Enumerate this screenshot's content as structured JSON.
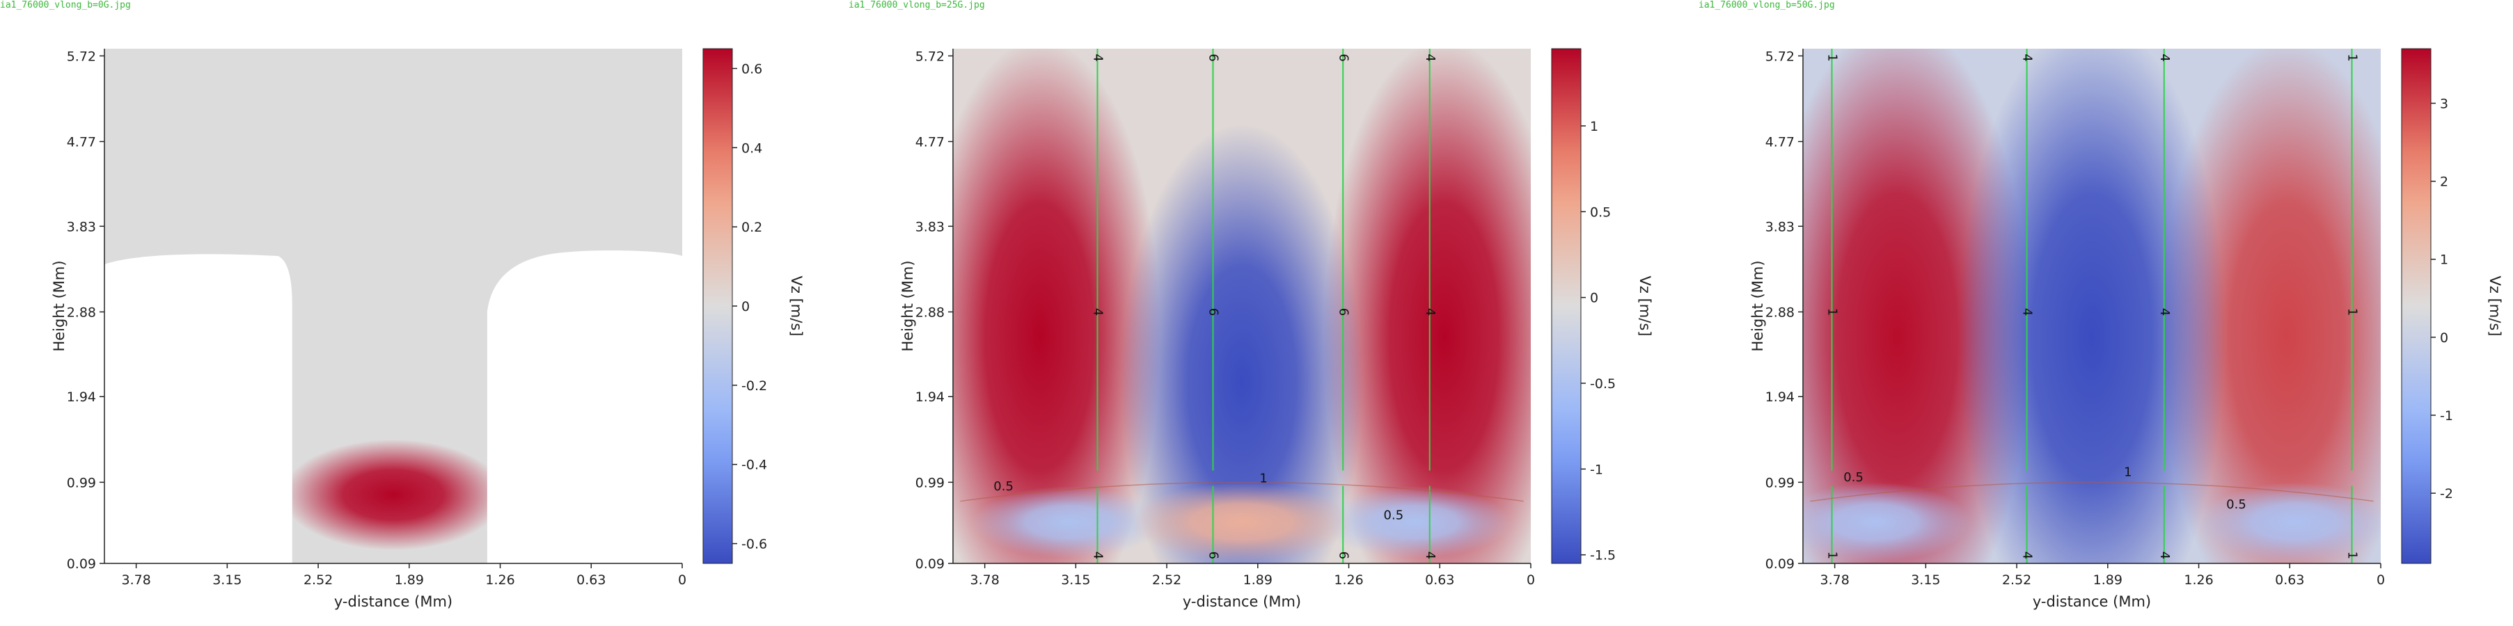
{
  "chart_data": [
    {
      "type": "heatmap",
      "file_label": "ia1_76000_vlong_b=0G.jpg",
      "xlabel": "y-distance (Mm)",
      "ylabel": "Height (Mm)",
      "colorbar_label": "Vz [m/s]",
      "xticks": [
        "3.78",
        "3.15",
        "2.52",
        "1.89",
        "1.26",
        "0.63",
        "0"
      ],
      "yticks": [
        "0.09",
        "0.99",
        "1.94",
        "2.88",
        "3.83",
        "4.77",
        "5.72"
      ],
      "xlim": [
        4.0,
        0.0
      ],
      "ylim": [
        0.09,
        5.8
      ],
      "colorbar_ticks": [
        "0.6",
        "0.4",
        "0.2",
        "0",
        "-0.2",
        "-0.4",
        "-0.6"
      ],
      "colorbar_range": [
        -0.65,
        0.65
      ],
      "masked_region": true,
      "blobs": [
        {
          "x": 2.0,
          "y": 0.85,
          "sx": 0.35,
          "sy": 0.28,
          "value": 0.65
        }
      ],
      "contours": [],
      "contour_labels": []
    },
    {
      "type": "heatmap",
      "file_label": "ia1_76000_vlong_b=25G.jpg",
      "xlabel": "y-distance (Mm)",
      "ylabel": "Height (Mm)",
      "colorbar_label": "Vz [m/s]",
      "xticks": [
        "3.78",
        "3.15",
        "2.52",
        "1.89",
        "1.26",
        "0.63",
        "0"
      ],
      "yticks": [
        "0.09",
        "0.99",
        "1.94",
        "2.88",
        "3.83",
        "4.77",
        "5.72"
      ],
      "xlim": [
        4.0,
        0.0
      ],
      "ylim": [
        0.09,
        5.8
      ],
      "colorbar_ticks": [
        "1",
        "0.5",
        "0",
        "-0.5",
        "-1",
        "-1.5"
      ],
      "colorbar_range": [
        -1.55,
        1.45
      ],
      "masked_region": false,
      "blobs": [
        {
          "x": 3.4,
          "y": 2.6,
          "sx": 0.38,
          "sy": 1.5,
          "value": 1.45
        },
        {
          "x": 0.6,
          "y": 2.6,
          "sx": 0.38,
          "sy": 1.5,
          "value": 1.45
        },
        {
          "x": 2.0,
          "y": 2.1,
          "sx": 0.38,
          "sy": 1.3,
          "value": -1.55
        },
        {
          "x": 3.2,
          "y": 0.55,
          "sx": 0.3,
          "sy": 0.18,
          "value": -0.5
        },
        {
          "x": 0.8,
          "y": 0.55,
          "sx": 0.3,
          "sy": 0.18,
          "value": -0.5
        },
        {
          "x": 2.0,
          "y": 0.55,
          "sx": 0.35,
          "sy": 0.2,
          "value": 0.45
        }
      ],
      "contours": [
        {
          "label": "6",
          "x": 2.2
        },
        {
          "label": "6",
          "x": 1.3
        },
        {
          "label": "4",
          "x": 3.0
        },
        {
          "label": "4",
          "x": 0.7
        }
      ],
      "contour_labels": [
        {
          "text": "0.5",
          "x": 3.65,
          "y": 0.9
        },
        {
          "text": "1",
          "x": 1.85,
          "y": 0.99
        },
        {
          "text": "0.5",
          "x": 0.95,
          "y": 0.58
        }
      ]
    },
    {
      "type": "heatmap",
      "file_label": "ia1_76000_vlong_b=50G.jpg",
      "xlabel": "y-distance (Mm)",
      "ylabel": "Height (Mm)",
      "colorbar_label": "Vz [m/s]",
      "xticks": [
        "3.78",
        "3.15",
        "2.52",
        "1.89",
        "1.26",
        "0.63",
        "0"
      ],
      "yticks": [
        "0.09",
        "0.99",
        "1.94",
        "2.88",
        "3.83",
        "4.77",
        "5.72"
      ],
      "xlim": [
        4.0,
        0.0
      ],
      "ylim": [
        0.09,
        5.8
      ],
      "colorbar_ticks": [
        "3",
        "2",
        "1",
        "0",
        "-1",
        "-2"
      ],
      "colorbar_range": [
        -2.9,
        3.7
      ],
      "masked_region": false,
      "blobs": [
        {
          "x": 3.35,
          "y": 2.6,
          "sx": 0.42,
          "sy": 1.6,
          "value": 3.6
        },
        {
          "x": 0.65,
          "y": 2.6,
          "sx": 0.4,
          "sy": 1.5,
          "value": 3.0
        },
        {
          "x": 2.0,
          "y": 2.6,
          "sx": 0.42,
          "sy": 1.6,
          "value": -2.9
        },
        {
          "x": 3.5,
          "y": 0.55,
          "sx": 0.3,
          "sy": 0.2,
          "value": -0.6
        },
        {
          "x": 0.6,
          "y": 0.55,
          "sx": 0.3,
          "sy": 0.2,
          "value": -0.6
        }
      ],
      "contours": [
        {
          "label": "4",
          "x": 2.45
        },
        {
          "label": "4",
          "x": 1.5
        },
        {
          "label": "1",
          "x": 3.8
        },
        {
          "label": "1",
          "x": 0.2
        }
      ],
      "contour_labels": [
        {
          "text": "0.5",
          "x": 3.65,
          "y": 1.0
        },
        {
          "text": "1",
          "x": 1.75,
          "y": 1.06
        },
        {
          "text": "0.5",
          "x": 1.0,
          "y": 0.7
        }
      ]
    }
  ]
}
